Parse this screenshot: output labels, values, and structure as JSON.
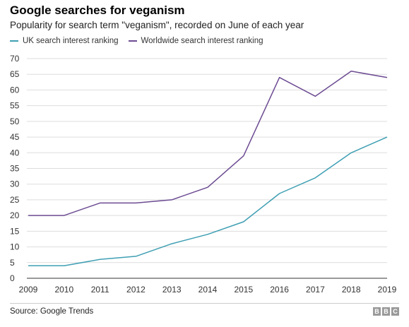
{
  "chart_data": {
    "type": "line",
    "title": "Google searches for veganism",
    "subtitle": "Popularity for search term \"veganism\", recorded on June of each year",
    "xlabel": "",
    "ylabel": "",
    "x": [
      "2009",
      "2010",
      "2011",
      "2012",
      "2013",
      "2014",
      "2015",
      "2016",
      "2017",
      "2018",
      "2019"
    ],
    "ylim": [
      0,
      70
    ],
    "yticks": [
      "0",
      "5",
      "10",
      "15",
      "20",
      "25",
      "30",
      "35",
      "40",
      "45",
      "50",
      "55",
      "60",
      "65",
      "70"
    ],
    "grid": true,
    "legend_position": "top-left",
    "series": [
      {
        "name": "UK search interest ranking",
        "color": "#3f9fb3",
        "values": [
          4,
          4,
          6,
          7,
          11,
          14,
          18,
          27,
          32,
          40,
          45
        ]
      },
      {
        "name": "Worldwide search interest ranking",
        "color": "#6c4b92",
        "values": [
          20,
          20,
          24,
          24,
          25,
          29,
          39,
          64,
          58,
          66,
          64
        ]
      }
    ]
  },
  "footer": {
    "source": "Source: Google Trends",
    "logo": [
      "B",
      "B",
      "C"
    ]
  }
}
